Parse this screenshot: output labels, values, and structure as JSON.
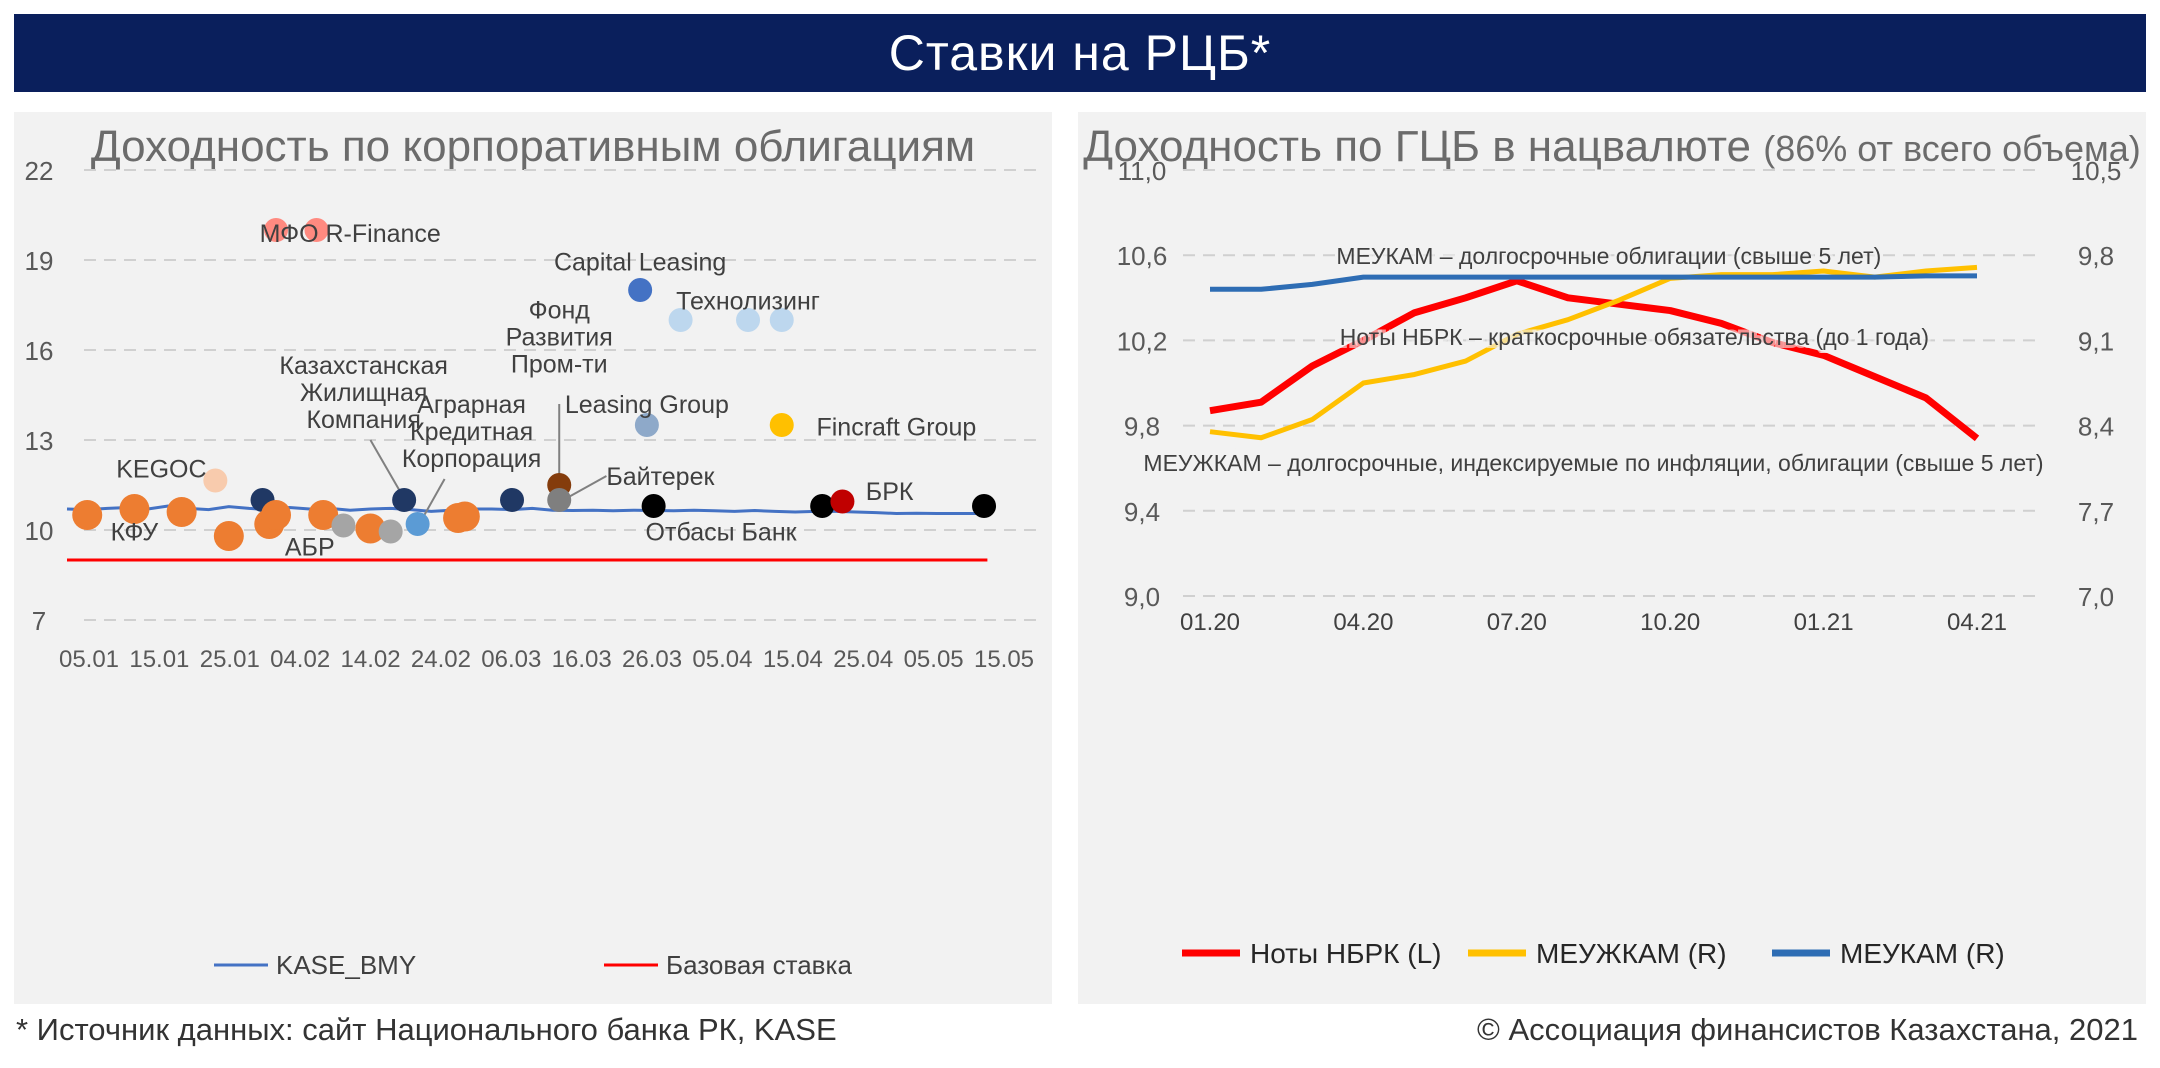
{
  "page": {
    "title": "Ставки на РЦБ*",
    "source_note": "* Источник данных: сайт Национального банка РК, KASE",
    "copyright": "© Ассоциация финансистов Казахстана, 2021"
  },
  "colors": {
    "banner": "#0a1f5c",
    "kase_bmy": "#4472c4",
    "base_rate": "#ff0000",
    "notes": "#ff0000",
    "meuzhkam": "#ffc000",
    "meukam": "#2e6db4"
  },
  "chart_data": [
    {
      "type": "scatter",
      "title": "Доходность по корпоративным облигациям",
      "ylim": [
        7,
        22
      ],
      "y_ticks": [
        "22",
        "19",
        "16",
        "13",
        "10",
        "7"
      ],
      "x_ticks": [
        "05.01",
        "15.01",
        "25.01",
        "04.02",
        "14.02",
        "24.02",
        "06.03",
        "16.03",
        "26.03",
        "05.04",
        "15.04",
        "25.04",
        "05.05",
        "15.05"
      ],
      "grid": true,
      "legend": {
        "position": "bottom",
        "entries": [
          {
            "name": "KASE_BMY",
            "color": "#4472c4"
          },
          {
            "name": "Базовая ставка",
            "color": "#ff0000"
          }
        ]
      },
      "kase_bmy": {
        "x": [
          0,
          3,
          6,
          9,
          12,
          15,
          18,
          21,
          24,
          27,
          30,
          33,
          36,
          39,
          42,
          45,
          48,
          51,
          54,
          57,
          60,
          63,
          66,
          69,
          72,
          75,
          78,
          81,
          84,
          87,
          90,
          93,
          96,
          99,
          102,
          105,
          108,
          111,
          114,
          117,
          120,
          123,
          126,
          129,
          132,
          135
        ],
        "y": [
          10.7,
          10.68,
          10.72,
          10.75,
          10.7,
          10.8,
          10.72,
          10.68,
          10.78,
          10.72,
          10.68,
          10.75,
          10.7,
          10.72,
          10.66,
          10.7,
          10.72,
          10.68,
          10.62,
          10.66,
          10.7,
          10.7,
          10.68,
          10.72,
          10.66,
          10.65,
          10.66,
          10.64,
          10.66,
          10.65,
          10.64,
          10.66,
          10.64,
          10.62,
          10.65,
          10.62,
          10.6,
          10.62,
          10.62,
          10.6,
          10.58,
          10.55,
          10.56,
          10.55,
          10.55,
          10.55
        ]
      },
      "base_rate": {
        "y": 9.0
      },
      "points": [
        {
          "x": 31,
          "y": 20.0,
          "color": "#ff8a80"
        },
        {
          "x": 37,
          "y": 20.0,
          "color": "#ff8a80"
        },
        {
          "x": 85,
          "y": 18.0,
          "color": "#4472c4"
        },
        {
          "x": 91,
          "y": 17.0,
          "color": "#bdd7ee"
        },
        {
          "x": 101,
          "y": 17.0,
          "color": "#bdd7ee"
        },
        {
          "x": 106,
          "y": 17.0,
          "color": "#bdd7ee"
        },
        {
          "x": 86,
          "y": 13.5,
          "color": "#8ea9c9"
        },
        {
          "x": 106,
          "y": 13.5,
          "color": "#ffc000"
        },
        {
          "x": 22,
          "y": 11.65,
          "color": "#f8cbad"
        },
        {
          "x": 29,
          "y": 11.0,
          "color": "#203864"
        },
        {
          "x": 50,
          "y": 11.0,
          "color": "#203864"
        },
        {
          "x": 66,
          "y": 11.0,
          "color": "#203864"
        },
        {
          "x": 73,
          "y": 11.5,
          "color": "#843c0c"
        },
        {
          "x": 73,
          "y": 11.0,
          "color": "#7f7f7f"
        },
        {
          "x": 87,
          "y": 10.8,
          "color": "#000000"
        },
        {
          "x": 112,
          "y": 10.8,
          "color": "#000000"
        },
        {
          "x": 115,
          "y": 10.95,
          "color": "#c00000"
        },
        {
          "x": 136,
          "y": 10.8,
          "color": "#000000"
        },
        {
          "x": 3,
          "y": 10.5,
          "color": "#ed7d31"
        },
        {
          "x": 10,
          "y": 10.7,
          "color": "#ed7d31"
        },
        {
          "x": 17,
          "y": 10.6,
          "color": "#ed7d31"
        },
        {
          "x": 24,
          "y": 9.8,
          "color": "#ed7d31"
        },
        {
          "x": 30,
          "y": 10.2,
          "color": "#ed7d31"
        },
        {
          "x": 31,
          "y": 10.5,
          "color": "#ed7d31"
        },
        {
          "x": 38,
          "y": 10.5,
          "color": "#ed7d31"
        },
        {
          "x": 41,
          "y": 10.15,
          "color": "#a5a5a5"
        },
        {
          "x": 45,
          "y": 10.05,
          "color": "#ed7d31"
        },
        {
          "x": 48,
          "y": 9.95,
          "color": "#a5a5a5"
        },
        {
          "x": 52,
          "y": 10.2,
          "color": "#5b9bd5"
        },
        {
          "x": 58,
          "y": 10.4,
          "color": "#ed7d31"
        },
        {
          "x": 59,
          "y": 10.45,
          "color": "#ed7d31"
        }
      ],
      "annotations": [
        {
          "text": "МФО R-Finance",
          "x": 42,
          "y": 19.9
        },
        {
          "text": "Capital Leasing",
          "x": 85,
          "y": 18.95
        },
        {
          "text": "Технолизинг",
          "x": 101,
          "y": 17.65
        },
        {
          "text": "Фонд",
          "x": 73,
          "y": 17.35
        },
        {
          "text": "Развития",
          "x": 73,
          "y": 16.45
        },
        {
          "text": "Пром-ти",
          "x": 73,
          "y": 15.55
        },
        {
          "text": "Казахстанская",
          "x": 44,
          "y": 15.5
        },
        {
          "text": "Жилищная",
          "x": 44,
          "y": 14.6
        },
        {
          "text": "Компания",
          "x": 44,
          "y": 13.7
        },
        {
          "text": "Leasing Group",
          "x": 86,
          "y": 14.2
        },
        {
          "text": "Fincraft Group",
          "x": 123,
          "y": 13.45
        },
        {
          "text": "Аграрная",
          "x": 60,
          "y": 14.2
        },
        {
          "text": "Кредитная",
          "x": 60,
          "y": 13.3
        },
        {
          "text": "Корпорация",
          "x": 60,
          "y": 12.4
        },
        {
          "text": "KEGOC",
          "x": 14,
          "y": 12.05
        },
        {
          "text": "Байтерек",
          "x": 88,
          "y": 11.8
        },
        {
          "text": "БРК",
          "x": 122,
          "y": 11.3
        },
        {
          "text": "КФУ",
          "x": 10,
          "y": 9.95
        },
        {
          "text": "АБР",
          "x": 36,
          "y": 9.45
        },
        {
          "text": "Отбасы Банк",
          "x": 97,
          "y": 9.95
        }
      ],
      "leaders": [
        {
          "from_x": 45,
          "from_y": 13.0,
          "to_x": 50,
          "to_y": 11.05
        },
        {
          "from_x": 73,
          "from_y": 14.2,
          "to_x": 73,
          "to_y": 11.55
        },
        {
          "from_x": 80,
          "from_y": 11.8,
          "to_x": 74,
          "to_y": 11.05
        },
        {
          "from_x": 56,
          "from_y": 11.7,
          "to_x": 52.5,
          "to_y": 10.3
        }
      ]
    },
    {
      "type": "line",
      "title": "Доходность по ГЦБ в нацвалюте",
      "title_note": "(86% от всего объема)",
      "x_ticks": [
        "01.20",
        "04.20",
        "07.20",
        "10.20",
        "01.21",
        "04.21"
      ],
      "ylim_left": [
        9.0,
        11.0
      ],
      "ylim_right": [
        7.0,
        10.5
      ],
      "y_ticks_left": [
        "11,0",
        "10,6",
        "10,2",
        "9,8",
        "9,4",
        "9,0"
      ],
      "y_ticks_right": [
        "10,5",
        "9,8",
        "9,1",
        "8,4",
        "7,7",
        "7,0"
      ],
      "grid": true,
      "series": [
        {
          "name": "Ноты НБРК (L)",
          "axis": "left",
          "color": "#ff0000",
          "x": [
            0,
            1,
            2,
            3,
            4,
            5,
            6,
            7,
            8,
            9,
            10,
            11,
            12,
            13,
            14,
            15
          ],
          "y": [
            9.87,
            9.91,
            10.08,
            10.2,
            10.33,
            10.4,
            10.48,
            10.4,
            10.37,
            10.34,
            10.28,
            10.19,
            10.13,
            10.03,
            9.93,
            9.74
          ]
        },
        {
          "name": "МЕУЖКАМ (R)",
          "axis": "right",
          "color": "#ffc000",
          "x": [
            0,
            1,
            2,
            3,
            4,
            5,
            6,
            7,
            8,
            9,
            10,
            11,
            12,
            13,
            14,
            15
          ],
          "y": [
            8.35,
            8.3,
            8.45,
            8.75,
            8.82,
            8.93,
            9.15,
            9.27,
            9.43,
            9.61,
            9.64,
            9.64,
            9.67,
            9.62,
            9.67,
            9.7
          ]
        },
        {
          "name": "МЕУКАМ (R)",
          "axis": "right",
          "color": "#2e6db4",
          "x": [
            0,
            1,
            2,
            3,
            4,
            5,
            6,
            7,
            8,
            9,
            10,
            11,
            12,
            13,
            14,
            15
          ],
          "y": [
            9.52,
            9.52,
            9.56,
            9.62,
            9.62,
            9.62,
            9.62,
            9.62,
            9.62,
            9.62,
            9.62,
            9.62,
            9.62,
            9.62,
            9.63,
            9.63
          ]
        }
      ],
      "annotations": [
        {
          "text": "МЕУКАМ – долгосрочные облигации (свыше 5 лет)",
          "x": 7.8,
          "y": 10.6
        },
        {
          "text": "Ноты НБРК – краткосрочные обязательства (до 1 года)",
          "x": 8.3,
          "y": 10.22
        },
        {
          "text": "МЕУЖКАМ – долгосрочные, индексируемые по инфляции, облигации (свыше 5 лет)",
          "x": 7.5,
          "y": 9.63
        }
      ],
      "legend": {
        "position": "bottom"
      }
    }
  ]
}
